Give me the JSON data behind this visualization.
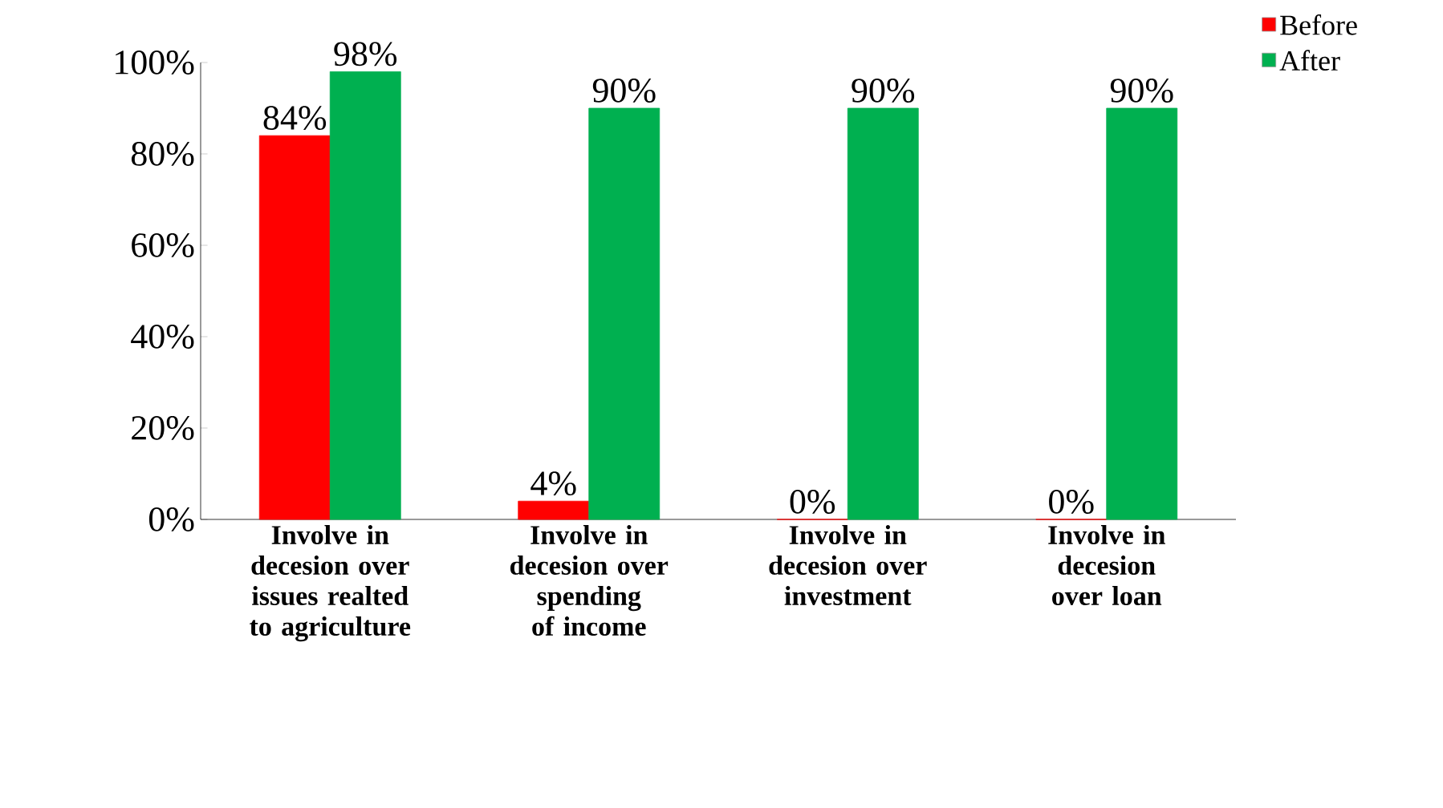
{
  "chart_data": {
    "type": "bar",
    "categories": [
      "Involve in decesion over issues realted to agriculture",
      "Involve in decesion over spending of income",
      "Involve in decesion over investment",
      "Involve in decesion over loan"
    ],
    "series": [
      {
        "name": "Before",
        "color": "#ff0000",
        "values": [
          84,
          4,
          0,
          0
        ],
        "value_labels": [
          "84%",
          "4%",
          "0%",
          "0%"
        ]
      },
      {
        "name": "After",
        "color": "#00b050",
        "values": [
          98,
          90,
          90,
          90
        ],
        "value_labels": [
          "98%",
          "90%",
          "90%",
          "90%"
        ]
      }
    ],
    "ylim": [
      0,
      100
    ],
    "yticks": [
      {
        "value": 0,
        "label": "0%"
      },
      {
        "value": 20,
        "label": "20%"
      },
      {
        "value": 40,
        "label": "40%"
      },
      {
        "value": 60,
        "label": "60%"
      },
      {
        "value": 80,
        "label": "80%"
      },
      {
        "value": 100,
        "label": "100%"
      }
    ],
    "grid": false,
    "legend": "top right"
  }
}
